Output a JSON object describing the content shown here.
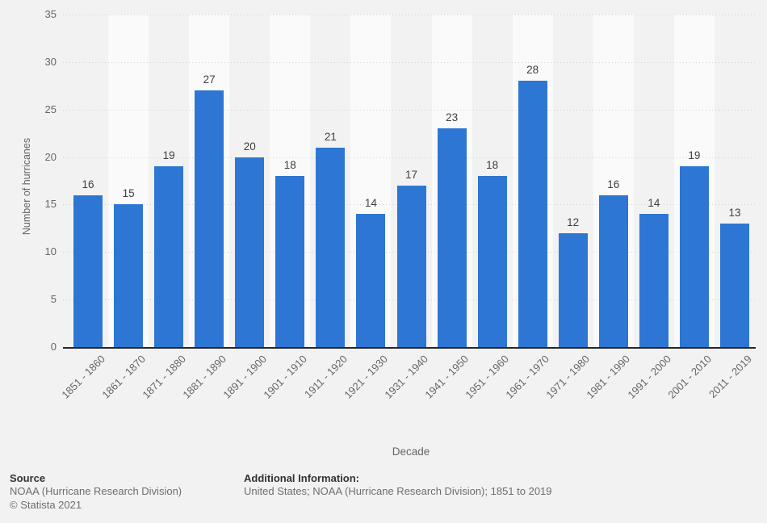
{
  "chart_data": {
    "type": "bar",
    "categories": [
      "1851 - 1860",
      "1861 - 1870",
      "1871 - 1880",
      "1881 - 1890",
      "1891 - 1900",
      "1901 - 1910",
      "1911 - 1920",
      "1921 - 1930",
      "1931 - 1940",
      "1941 - 1950",
      "1951 - 1960",
      "1961 - 1970",
      "1971 - 1980",
      "1981 - 1990",
      "1991 - 2000",
      "2001 - 2010",
      "2011 - 2019"
    ],
    "values": [
      16,
      15,
      19,
      27,
      20,
      18,
      21,
      14,
      17,
      23,
      18,
      28,
      12,
      16,
      14,
      19,
      13
    ],
    "xlabel": "Decade",
    "ylabel": "Number of hurricanes",
    "ylim": [
      0,
      35
    ],
    "ytick_step": 5,
    "grid": "horizontal-dotted",
    "legend": "none",
    "bar_color": "#2e76d3",
    "band_color": "#fafafa",
    "background_color": "#f2f2f2"
  },
  "footer": {
    "source_label": "Source",
    "source_value": "NOAA (Hurricane Research Division)",
    "copyright": "© Statista 2021",
    "additional_label": "Additional Information:",
    "additional_value": "United States; NOAA (Hurricane Research Division); 1851 to 2019"
  }
}
